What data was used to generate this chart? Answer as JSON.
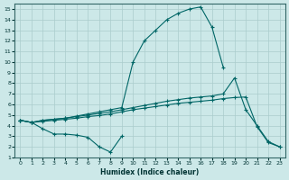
{
  "xlabel": "Humidex (Indice chaleur)",
  "bg_color": "#cce8e8",
  "grid_color": "#aacccc",
  "line_color": "#006666",
  "xlim": [
    -0.5,
    23.5
  ],
  "ylim": [
    1,
    15.5
  ],
  "xticks": [
    0,
    1,
    2,
    3,
    4,
    5,
    6,
    7,
    8,
    9,
    10,
    11,
    12,
    13,
    14,
    15,
    16,
    17,
    18,
    19,
    20,
    21,
    22,
    23
  ],
  "yticks": [
    1,
    2,
    3,
    4,
    5,
    6,
    7,
    8,
    9,
    10,
    11,
    12,
    13,
    14,
    15
  ],
  "line_peak_x": [
    0,
    1,
    2,
    3,
    4,
    5,
    6,
    7,
    8,
    9,
    10,
    11,
    12,
    13,
    14,
    15,
    16,
    17,
    18
  ],
  "line_peak_y": [
    4.5,
    4.3,
    4.5,
    4.6,
    4.7,
    4.9,
    5.1,
    5.3,
    5.5,
    5.7,
    10.0,
    12.0,
    13.0,
    14.0,
    14.6,
    15.0,
    15.2,
    13.3,
    9.5
  ],
  "line_low_x": [
    0,
    1,
    2,
    3,
    4,
    5,
    6,
    7,
    8,
    9
  ],
  "line_low_y": [
    4.5,
    4.3,
    3.7,
    3.2,
    3.2,
    3.1,
    2.9,
    2.0,
    1.5,
    3.0
  ],
  "line_upper_x": [
    0,
    1,
    2,
    3,
    4,
    5,
    6,
    7,
    8,
    9,
    10,
    11,
    12,
    13,
    14,
    15,
    16,
    17,
    18,
    19,
    20,
    21,
    22,
    23
  ],
  "line_upper_y": [
    4.5,
    4.3,
    4.5,
    4.6,
    4.7,
    4.85,
    5.0,
    5.15,
    5.3,
    5.5,
    5.7,
    5.9,
    6.1,
    6.3,
    6.45,
    6.6,
    6.7,
    6.8,
    7.0,
    8.5,
    5.5,
    4.0,
    2.5,
    2.0
  ],
  "line_lower_x": [
    0,
    1,
    2,
    3,
    4,
    5,
    6,
    7,
    8,
    9,
    10,
    11,
    12,
    13,
    14,
    15,
    16,
    17,
    18,
    19,
    20,
    21,
    22,
    23
  ],
  "line_lower_y": [
    4.5,
    4.3,
    4.4,
    4.5,
    4.6,
    4.7,
    4.85,
    4.95,
    5.1,
    5.3,
    5.5,
    5.65,
    5.8,
    5.95,
    6.1,
    6.2,
    6.3,
    6.4,
    6.55,
    6.65,
    6.7,
    3.9,
    2.4,
    2.0
  ]
}
